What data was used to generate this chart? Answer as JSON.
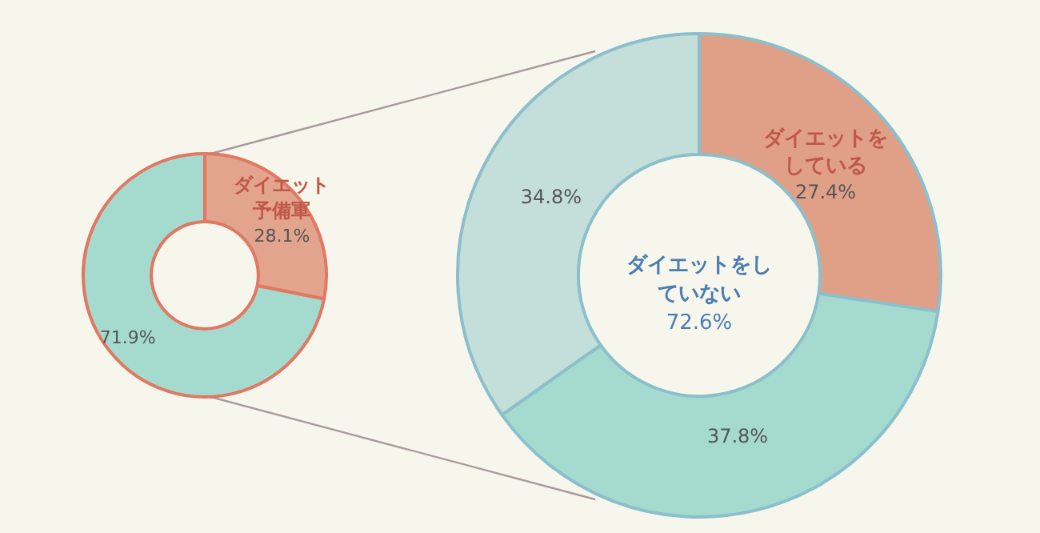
{
  "chart_data": [
    {
      "type": "donut",
      "categories": [
        "ダイエット予備軍",
        null
      ],
      "values": [
        28.1,
        71.9
      ],
      "colors": [
        "#e2a48c",
        "#a5dbcf"
      ],
      "value_labels": [
        "28.1%",
        "71.9%"
      ]
    },
    {
      "type": "donut",
      "categories": [
        "ダイエットをしている",
        null,
        null
      ],
      "values": [
        27.4,
        37.8,
        34.8
      ],
      "colors": [
        "#e0a088",
        "#a5dbcf",
        "#c4dfd9"
      ],
      "value_labels": [
        "27.4%",
        "37.8%",
        "34.8%"
      ],
      "annotations": [
        "ダイエットをしていない",
        "72.6%"
      ]
    }
  ]
}
